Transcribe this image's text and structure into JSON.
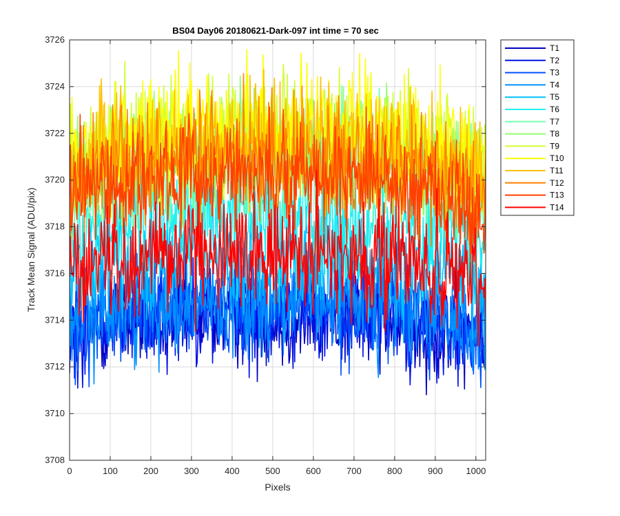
{
  "chart_data": {
    "type": "line",
    "title": "BS04 Day06 20180621-Dark-097 int time = 70 sec",
    "xlabel": "Pixels",
    "ylabel": "Track Mean Signal (ADU/pix)",
    "xlim": [
      0,
      1024
    ],
    "ylim": [
      3708,
      3726
    ],
    "xticks": [
      0,
      100,
      200,
      300,
      400,
      500,
      600,
      700,
      800,
      900,
      1000
    ],
    "yticks": [
      3708,
      3710,
      3712,
      3714,
      3716,
      3718,
      3720,
      3722,
      3724,
      3726
    ],
    "grid": true,
    "legend_position": "outside-top-right",
    "series_profile": {
      "x": [
        0,
        100,
        200,
        300,
        400,
        500,
        600,
        700,
        800,
        900,
        1024
      ],
      "description_units": "ADU/pix"
    },
    "series": [
      {
        "name": "T1",
        "color": "#0000bf",
        "mean": [
          3713.2,
          3713.9,
          3714.1,
          3714.2,
          3714.2,
          3714.2,
          3714.2,
          3714.1,
          3714.0,
          3713.6,
          3712.9
        ],
        "noise": 1.3
      },
      {
        "name": "T2",
        "color": "#0010e6",
        "mean": [
          3713.4,
          3714.1,
          3714.3,
          3714.4,
          3714.4,
          3714.4,
          3714.4,
          3714.3,
          3714.2,
          3713.8,
          3713.1
        ],
        "noise": 1.3
      },
      {
        "name": "T3",
        "color": "#0050ff",
        "mean": [
          3713.6,
          3714.3,
          3714.5,
          3714.6,
          3714.6,
          3714.6,
          3714.6,
          3714.5,
          3714.4,
          3714.0,
          3713.3
        ],
        "noise": 1.3
      },
      {
        "name": "T4",
        "color": "#0090ff",
        "mean": [
          3714.0,
          3714.6,
          3714.8,
          3714.9,
          3714.9,
          3714.9,
          3714.9,
          3714.8,
          3714.7,
          3714.3,
          3713.6
        ],
        "noise": 1.3
      },
      {
        "name": "T5",
        "color": "#00c0ff",
        "mean": [
          3715.8,
          3716.4,
          3716.6,
          3716.7,
          3716.7,
          3716.7,
          3716.7,
          3716.6,
          3716.5,
          3716.1,
          3715.4
        ],
        "noise": 1.4
      },
      {
        "name": "T6",
        "color": "#20f0f0",
        "mean": [
          3717.5,
          3718.2,
          3718.4,
          3718.5,
          3718.5,
          3718.5,
          3718.5,
          3718.4,
          3718.3,
          3717.9,
          3717.1
        ],
        "noise": 1.5
      },
      {
        "name": "T7",
        "color": "#70ffb0",
        "mean": [
          3719.6,
          3720.3,
          3720.6,
          3720.7,
          3720.8,
          3720.8,
          3720.8,
          3720.7,
          3720.5,
          3720.0,
          3719.2
        ],
        "noise": 1.5
      },
      {
        "name": "T8",
        "color": "#90ff70",
        "mean": [
          3720.2,
          3720.9,
          3721.2,
          3721.3,
          3721.4,
          3721.4,
          3721.4,
          3721.3,
          3721.1,
          3720.6,
          3719.7
        ],
        "noise": 1.5
      },
      {
        "name": "T9",
        "color": "#d0ff30",
        "mean": [
          3720.8,
          3721.5,
          3721.8,
          3721.9,
          3722.0,
          3722.0,
          3722.0,
          3721.9,
          3721.7,
          3721.2,
          3720.3
        ],
        "noise": 1.5
      },
      {
        "name": "T10",
        "color": "#ffff00",
        "mean": [
          3721.0,
          3721.7,
          3722.0,
          3722.1,
          3722.2,
          3722.2,
          3722.2,
          3722.1,
          3721.9,
          3721.4,
          3720.5
        ],
        "noise": 1.5
      },
      {
        "name": "T11",
        "color": "#ffc000",
        "mean": [
          3720.4,
          3721.1,
          3721.4,
          3721.5,
          3721.6,
          3721.6,
          3721.6,
          3721.5,
          3721.3,
          3720.8,
          3719.9
        ],
        "noise": 1.5
      },
      {
        "name": "T12",
        "color": "#ff8000",
        "mean": [
          3719.8,
          3720.5,
          3720.8,
          3720.9,
          3721.0,
          3721.0,
          3721.0,
          3720.9,
          3720.7,
          3720.2,
          3719.3
        ],
        "noise": 1.5
      },
      {
        "name": "T13",
        "color": "#ff4000",
        "mean": [
          3719.2,
          3719.9,
          3720.1,
          3720.2,
          3720.3,
          3720.3,
          3720.3,
          3720.2,
          3720.0,
          3719.5,
          3718.7
        ],
        "noise": 1.4
      },
      {
        "name": "T14",
        "color": "#ff0000",
        "mean": [
          3716.0,
          3716.6,
          3716.8,
          3716.9,
          3716.9,
          3716.9,
          3716.9,
          3716.8,
          3716.6,
          3716.1,
          3715.3
        ],
        "noise": 1.4
      }
    ]
  }
}
